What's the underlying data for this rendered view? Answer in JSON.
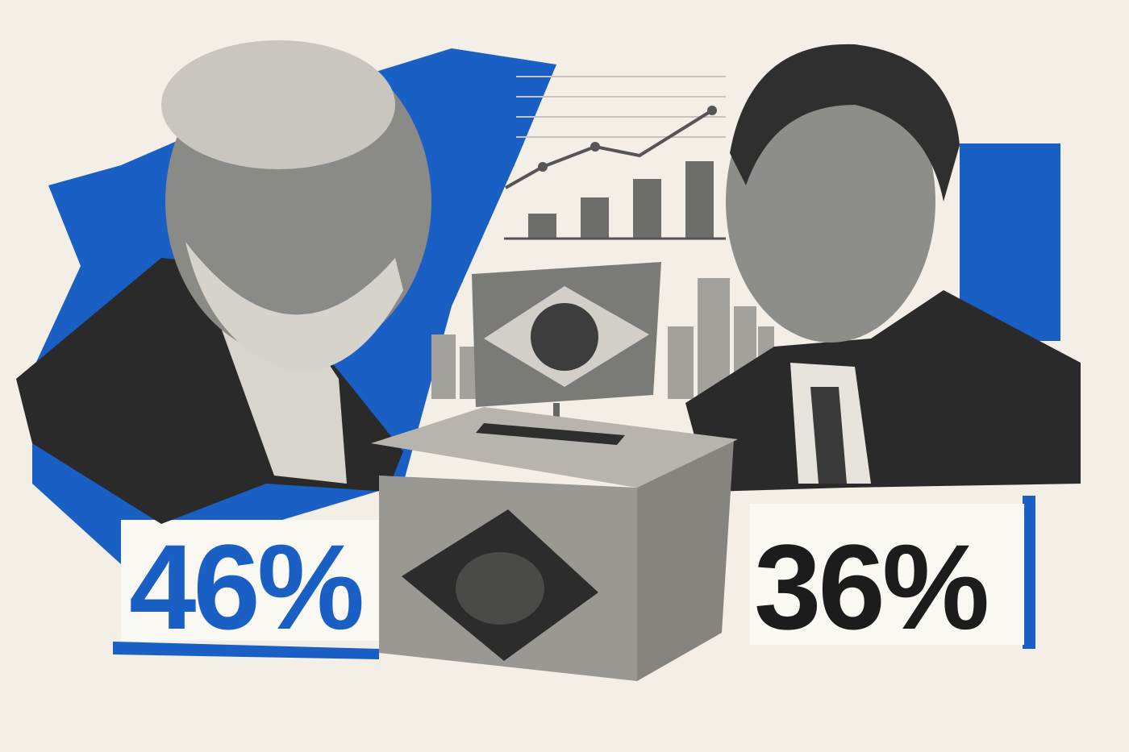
{
  "left_figure": {
    "label": "46%"
  },
  "right_figure": {
    "label": "36%"
  }
}
